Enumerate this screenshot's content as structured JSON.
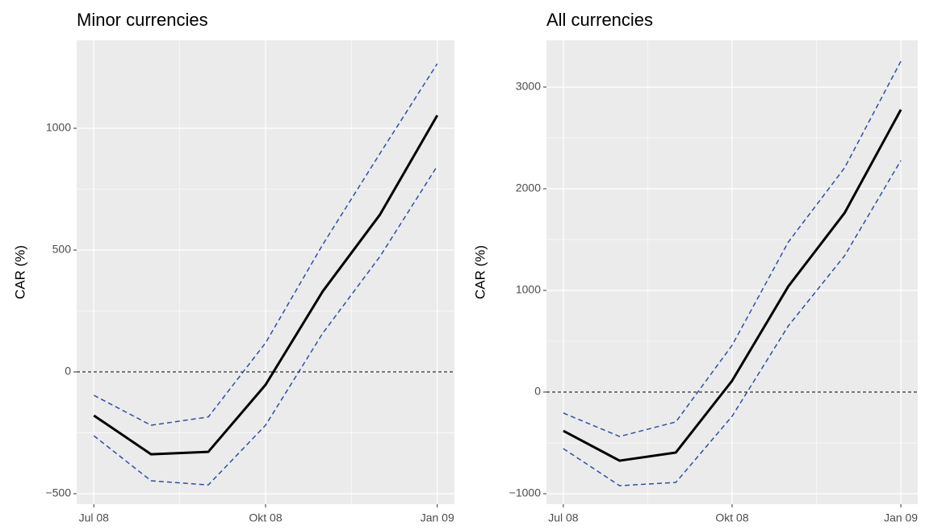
{
  "chart_data": [
    {
      "type": "line",
      "title": "Minor currencies",
      "y_label": "CAR (%)",
      "x": [
        "2008-07",
        "2008-08",
        "2008-09",
        "2008-10",
        "2008-11",
        "2008-12",
        "2009-01"
      ],
      "xlim": [
        "2008-07",
        "2009-01"
      ],
      "xticks": [
        {
          "value": "2008-07",
          "label": "Jul 08"
        },
        {
          "value": "2008-10",
          "label": "Okt 08"
        },
        {
          "value": "2009-01",
          "label": "Jan 09"
        }
      ],
      "ylim": [
        -543,
        1361
      ],
      "yticks": [
        {
          "value": -500,
          "label": "−500"
        },
        0,
        500,
        1000
      ],
      "hline": 0,
      "grid": true,
      "series": [
        {
          "color": "#2e4fa3",
          "dash": true,
          "values": [
            -96,
            -219,
            -185,
            119,
            523,
            897,
            1265
          ]
        },
        {
          "color": "#2e4fa3",
          "dash": true,
          "values": [
            -262,
            -447,
            -464,
            -219,
            159,
            474,
            845
          ]
        },
        {
          "color": "#000000",
          "dash": false,
          "values": [
            -179,
            -338,
            -328,
            -53,
            331,
            646,
            1053
          ]
        }
      ]
    },
    {
      "type": "line",
      "title": "All currencies",
      "y_label": "CAR (%)",
      "x": [
        "2008-07",
        "2008-08",
        "2008-09",
        "2008-10",
        "2008-11",
        "2008-12",
        "2009-01"
      ],
      "xlim": [
        "2008-07",
        "2009-01"
      ],
      "xticks": [
        {
          "value": "2008-07",
          "label": "Jul 08"
        },
        {
          "value": "2008-10",
          "label": "Okt 08"
        },
        {
          "value": "2009-01",
          "label": "Jan 09"
        }
      ],
      "ylim": [
        -1103,
        3460
      ],
      "yticks": [
        {
          "value": -1000,
          "label": "−1000"
        },
        0,
        1000,
        2000,
        3000
      ],
      "hline": 0,
      "grid": true,
      "series": [
        {
          "color": "#2e4fa3",
          "dash": true,
          "values": [
            -206,
            -437,
            -294,
            460,
            1476,
            2206,
            3254
          ]
        },
        {
          "color": "#2e4fa3",
          "dash": true,
          "values": [
            -556,
            -921,
            -889,
            -238,
            651,
            1341,
            2278
          ]
        },
        {
          "color": "#000000",
          "dash": false,
          "values": [
            -381,
            -675,
            -595,
            111,
            1040,
            1762,
            2778
          ]
        }
      ]
    }
  ]
}
